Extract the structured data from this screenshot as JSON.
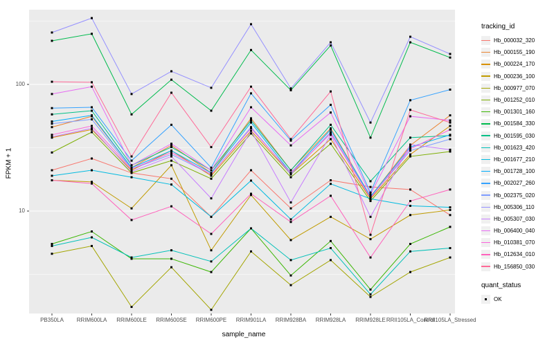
{
  "chart_data": {
    "type": "line",
    "title": "",
    "xlabel": "sample_name",
    "ylabel": "FPKM + 1",
    "x_categories": [
      "PB350LA",
      "RRIM600LA",
      "RRIM600LE",
      "RRIM600SE",
      "RRIM600PE",
      "RRIM901LA",
      "RRIM928BA",
      "RRIM928LA",
      "RRIM928LE",
      "RRII105LA_Control",
      "RRII105LA_Stressed"
    ],
    "y_scale": "log10",
    "y_ticks": [
      {
        "label": "100",
        "value": 100
      },
      {
        "label": "10",
        "value": 10
      }
    ],
    "ylim": [
      1.55,
      390
    ],
    "grid": "on",
    "panel_bg": "#EBEBEB",
    "grid_color": "#FFFFFF",
    "axis_text_color": "#4D4D4D",
    "marker": "black-square",
    "marker_color": "#000000",
    "legend": {
      "title": "tracking_id",
      "position": "right"
    },
    "legend2": {
      "title": "quant_status",
      "items": [
        {
          "label": "OK",
          "marker": "black-square"
        }
      ]
    },
    "series": [
      {
        "name": "Hb_000032_320",
        "color": "#F8766D",
        "values": [
          21,
          26,
          20,
          18,
          9.0,
          21,
          10.5,
          17.5,
          15.5,
          14.8,
          9.3
        ]
      },
      {
        "name": "Hb_000155_190",
        "color": "#EA8331",
        "values": [
          46,
          56,
          22,
          33,
          20,
          54,
          21,
          45,
          13,
          33,
          57
        ]
      },
      {
        "name": "Hb_000224_170",
        "color": "#D89000",
        "values": [
          38,
          44,
          21,
          30,
          19,
          43,
          19.5,
          37,
          12.5,
          28,
          47
        ]
      },
      {
        "name": "Hb_000236_100",
        "color": "#C09B00",
        "values": [
          17.5,
          17,
          10.5,
          23,
          4.9,
          13.4,
          5.9,
          9.0,
          6.0,
          9.3,
          10.2
        ]
      },
      {
        "name": "Hb_000977_070",
        "color": "#A3A500",
        "values": [
          4.6,
          5.3,
          1.75,
          3.6,
          1.66,
          4.8,
          2.6,
          4.1,
          2.1,
          3.3,
          4.3
        ]
      },
      {
        "name": "Hb_001252_010",
        "color": "#7CAE00",
        "values": [
          29,
          42,
          20,
          25,
          18,
          41,
          18.5,
          34,
          12,
          27,
          29.5
        ]
      },
      {
        "name": "Hb_001301_160",
        "color": "#39B600",
        "values": [
          5.5,
          6.9,
          4.2,
          4.2,
          3.3,
          7.3,
          3.1,
          5.8,
          2.4,
          5.5,
          7.5
        ]
      },
      {
        "name": "Hb_001584_330",
        "color": "#00BB4E",
        "values": [
          221,
          251,
          58,
          109,
          62,
          187,
          90,
          203,
          38,
          215,
          163
        ]
      },
      {
        "name": "Hb_001595_030",
        "color": "#00C087",
        "values": [
          58,
          62,
          23,
          32,
          21,
          52,
          21,
          48,
          17.2,
          38,
          39.5
        ]
      },
      {
        "name": "Hb_001623_420",
        "color": "#00C0B8",
        "values": [
          5.3,
          6.2,
          4.3,
          4.9,
          4.0,
          7.3,
          4.1,
          5.1,
          2.2,
          4.8,
          5.1
        ]
      },
      {
        "name": "Hb_001677_210",
        "color": "#00BAE0",
        "values": [
          19,
          21,
          18.5,
          16.2,
          9.0,
          17.4,
          8.6,
          16.4,
          12.5,
          11,
          10.7
        ]
      },
      {
        "name": "Hb_001728_100",
        "color": "#00ACFC",
        "values": [
          51,
          57,
          22,
          30,
          20,
          50,
          20,
          44,
          13,
          32,
          40
        ]
      },
      {
        "name": "Hb_002027_260",
        "color": "#35A2FF",
        "values": [
          65,
          66,
          25,
          48,
          22,
          85,
          36,
          69,
          14,
          75,
          91
        ]
      },
      {
        "name": "Hb_002375_020",
        "color": "#7F9CFF",
        "values": [
          49,
          53,
          21.5,
          28,
          19.5,
          46,
          19.5,
          42,
          12.8,
          30,
          37
        ]
      },
      {
        "name": "Hb_005306_110",
        "color": "#9590FF",
        "values": [
          257,
          334,
          84,
          127,
          94,
          299,
          93,
          215,
          50,
          238,
          174
        ]
      },
      {
        "name": "Hb_005307_030",
        "color": "#C77CFF",
        "values": [
          38.5,
          45,
          20.5,
          27,
          12.6,
          43,
          11.7,
          40,
          9.0,
          33.5,
          30.5
        ]
      },
      {
        "name": "Hb_006400_040",
        "color": "#E76BF3",
        "values": [
          84,
          96,
          23,
          34,
          21,
          66,
          33,
          60,
          13.5,
          56,
          52
        ]
      },
      {
        "name": "Hb_010381_070",
        "color": "#FA62DB",
        "values": [
          40,
          47,
          21.5,
          29,
          19.5,
          45,
          20,
          41,
          12.7,
          31,
          44
        ]
      },
      {
        "name": "Hb_012634_010",
        "color": "#FF62BC",
        "values": [
          17.5,
          16.5,
          8.5,
          10.9,
          6.6,
          13.7,
          8.2,
          13.2,
          4.3,
          12,
          14.8
        ]
      },
      {
        "name": "Hb_156850_030",
        "color": "#FF6A98",
        "values": [
          105,
          104,
          27,
          86,
          32,
          96,
          37,
          88,
          6.5,
          63,
          50
        ]
      }
    ]
  }
}
